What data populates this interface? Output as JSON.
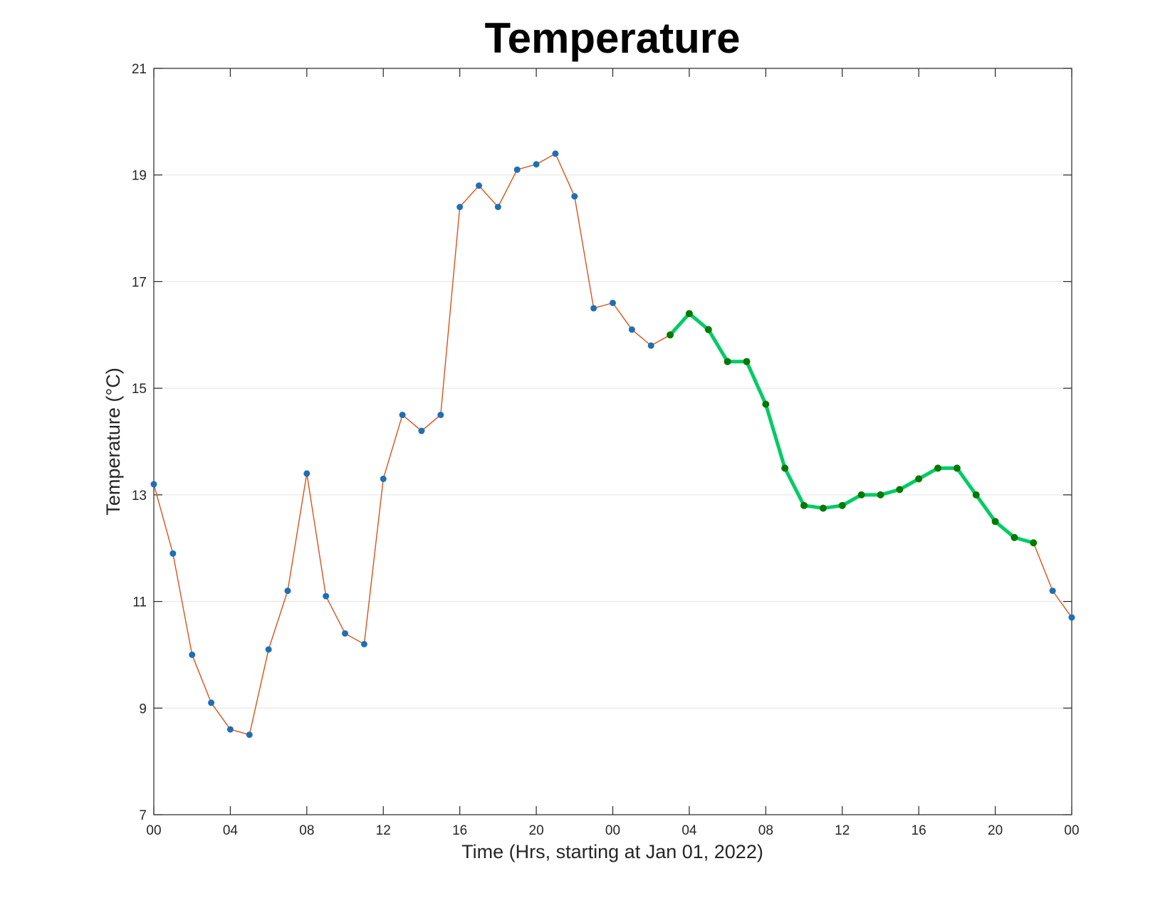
{
  "chart_data": {
    "type": "line",
    "title": "Temperature",
    "xlabel": "Time (Hrs, starting at Jan 01, 2022)",
    "ylabel": "Temperature (°C)",
    "xlim": [
      0,
      48
    ],
    "ylim": [
      7,
      21
    ],
    "grid": "horizontal",
    "x_ticks": [
      {
        "value": 0,
        "label": "00"
      },
      {
        "value": 4,
        "label": "04"
      },
      {
        "value": 8,
        "label": "08"
      },
      {
        "value": 12,
        "label": "12"
      },
      {
        "value": 16,
        "label": "16"
      },
      {
        "value": 20,
        "label": "20"
      },
      {
        "value": 24,
        "label": "00"
      },
      {
        "value": 28,
        "label": "04"
      },
      {
        "value": 32,
        "label": "08"
      },
      {
        "value": 36,
        "label": "12"
      },
      {
        "value": 40,
        "label": "16"
      },
      {
        "value": 44,
        "label": "20"
      },
      {
        "value": 48,
        "label": "00"
      }
    ],
    "y_ticks": [
      7,
      9,
      11,
      13,
      15,
      17,
      19,
      21
    ],
    "colors": {
      "observed_line": "#d95319",
      "observed_marker": "#1f6fb4",
      "highlight_line": "#00cc66",
      "highlight_marker": "#007a00"
    },
    "series": [
      {
        "x": [
          0,
          1,
          2,
          3,
          4,
          5,
          6,
          7,
          8,
          9,
          10,
          11,
          12,
          13,
          14,
          15,
          16,
          17,
          18,
          19,
          20,
          21,
          22,
          23,
          24,
          25,
          26,
          27,
          28,
          29,
          30,
          31,
          32,
          33,
          34,
          35,
          36,
          37,
          38,
          39,
          40,
          41,
          42,
          43,
          44,
          45,
          46,
          47,
          48
        ],
        "values": [
          13.2,
          11.9,
          10.0,
          9.1,
          8.6,
          8.5,
          10.1,
          11.2,
          13.4,
          11.1,
          10.4,
          10.2,
          13.3,
          14.5,
          14.2,
          14.5,
          18.4,
          18.8,
          18.4,
          19.1,
          19.2,
          19.4,
          18.6,
          16.5,
          16.6,
          16.1,
          15.8,
          16.0,
          16.4,
          16.1,
          15.5,
          15.5,
          14.7,
          13.5,
          12.8,
          12.75,
          12.8,
          13.0,
          13.0,
          13.1,
          13.3,
          13.5,
          13.5,
          13.0,
          12.5,
          12.2,
          12.1,
          11.2,
          10.7
        ]
      },
      {
        "x": [
          27,
          28,
          29,
          30,
          31,
          32,
          33,
          34,
          35,
          36,
          37,
          38,
          39,
          40,
          41,
          42,
          43,
          44,
          45,
          46
        ],
        "values": [
          16.0,
          16.4,
          16.1,
          15.5,
          15.5,
          14.7,
          13.5,
          12.8,
          12.75,
          12.8,
          13.0,
          13.0,
          13.1,
          13.3,
          13.5,
          13.5,
          13.0,
          12.5,
          12.2,
          12.1
        ]
      }
    ]
  }
}
